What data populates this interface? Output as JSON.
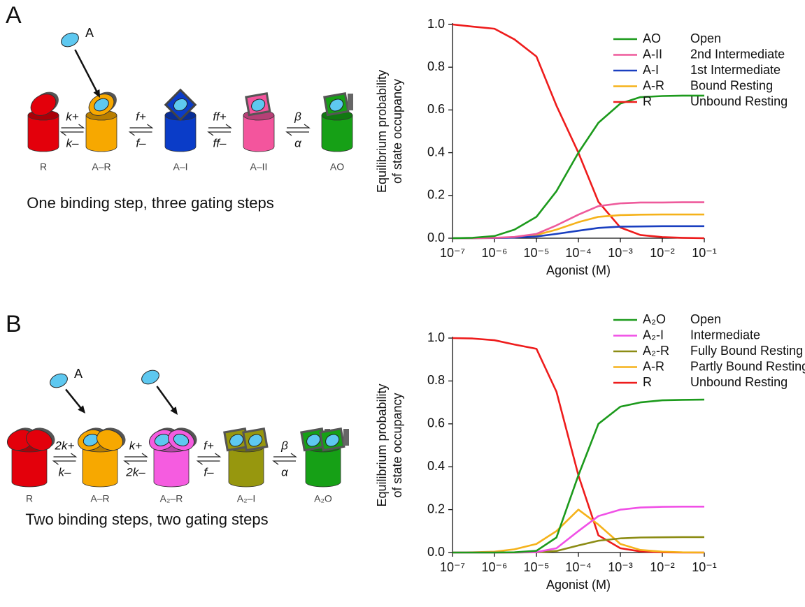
{
  "panels": [
    {
      "label": "A",
      "diagram": {
        "ligand": "A",
        "states": [
          "R",
          "A–R",
          "A–I",
          "A–II",
          "AO"
        ],
        "rates": [
          {
            "forward": "k+",
            "backward": "k–"
          },
          {
            "forward": "f+",
            "backward": "f–"
          },
          {
            "forward": "ff+",
            "backward": "ff–"
          },
          {
            "forward": "β",
            "backward": "α"
          }
        ],
        "caption": "One binding step, three gating steps"
      }
    },
    {
      "label": "B",
      "diagram": {
        "ligand": "A",
        "states": [
          "R",
          "A–R",
          "A₂–R",
          "A₂–I",
          "A₂O"
        ],
        "rates": [
          {
            "forward": "2k+",
            "backward": "k–"
          },
          {
            "forward": "k+",
            "backward": "2k–"
          },
          {
            "forward": "f+",
            "backward": "f–"
          },
          {
            "forward": "β",
            "backward": "α"
          }
        ],
        "caption": "Two binding steps, two gating steps"
      }
    }
  ],
  "chart_data": [
    {
      "type": "line",
      "xscale": "log",
      "xlabel": "Agonist (M)",
      "ylabel": [
        "Equilibrium probability",
        "of state occupancy"
      ],
      "xlim": [
        1e-07,
        0.1
      ],
      "xticks": [
        {
          "value": 1e-07,
          "label": "10⁻⁷"
        },
        {
          "value": 1e-06,
          "label": "10⁻⁶"
        },
        {
          "value": 1e-05,
          "label": "10⁻⁵"
        },
        {
          "value": 0.0001,
          "label": "10⁻⁴"
        },
        {
          "value": 0.001,
          "label": "10⁻³"
        },
        {
          "value": 0.01,
          "label": "10⁻²"
        },
        {
          "value": 0.1,
          "label": "10⁻¹"
        }
      ],
      "ylim": [
        0,
        1
      ],
      "yticks": [
        {
          "value": 0,
          "label": "0.0"
        },
        0.2,
        0.4,
        0.6,
        0.8,
        {
          "value": 1,
          "label": "1.0"
        }
      ],
      "legend": "upper right",
      "x": [
        1e-07,
        3e-07,
        1e-06,
        3e-06,
        1e-05,
        3e-05,
        0.0001,
        0.0003,
        0.001,
        0.003,
        0.01,
        0.03,
        0.1
      ],
      "series": [
        {
          "name": "AO",
          "description": "Open",
          "color": "#1c9a1c",
          "values": [
            0,
            0.002,
            0.01,
            0.04,
            0.1,
            0.22,
            0.4,
            0.54,
            0.63,
            0.66,
            0.665,
            0.667,
            0.667
          ]
        },
        {
          "name": "A-II",
          "description": "2nd Intermediate",
          "color": "#ee5a9b",
          "values": [
            0,
            0,
            0.002,
            0.006,
            0.02,
            0.06,
            0.11,
            0.15,
            0.163,
            0.167,
            0.167,
            0.168,
            0.168
          ]
        },
        {
          "name": "A-I",
          "description": "1st Intermediate",
          "color": "#1a3fc0",
          "values": [
            0,
            0,
            0.001,
            0.003,
            0.008,
            0.02,
            0.035,
            0.048,
            0.054,
            0.055,
            0.056,
            0.056,
            0.056
          ]
        },
        {
          "name": "A-R",
          "description": "Bound Resting",
          "color": "#f5b21a",
          "values": [
            0,
            0,
            0.001,
            0.004,
            0.015,
            0.04,
            0.075,
            0.1,
            0.108,
            0.11,
            0.111,
            0.111,
            0.111
          ]
        },
        {
          "name": "R",
          "description": "Unbound Resting",
          "color": "#ee1c1c",
          "values": [
            1,
            0.99,
            0.98,
            0.93,
            0.85,
            0.62,
            0.4,
            0.17,
            0.05,
            0.015,
            0.005,
            0.002,
            0
          ]
        }
      ]
    },
    {
      "type": "line",
      "xscale": "log",
      "xlabel": "Agonist (M)",
      "ylabel": [
        "Equilibrium probability",
        "of state occupancy"
      ],
      "xlim": [
        1e-07,
        0.1
      ],
      "xticks": [
        {
          "value": 1e-07,
          "label": "10⁻⁷"
        },
        {
          "value": 1e-06,
          "label": "10⁻⁶"
        },
        {
          "value": 1e-05,
          "label": "10⁻⁵"
        },
        {
          "value": 0.0001,
          "label": "10⁻⁴"
        },
        {
          "value": 0.001,
          "label": "10⁻³"
        },
        {
          "value": 0.01,
          "label": "10⁻²"
        },
        {
          "value": 0.1,
          "label": "10⁻¹"
        }
      ],
      "ylim": [
        0,
        1
      ],
      "yticks": [
        {
          "value": 0,
          "label": "0.0"
        },
        0.2,
        0.4,
        0.6,
        0.8,
        {
          "value": 1,
          "label": "1.0"
        }
      ],
      "legend": "upper right",
      "x": [
        1e-07,
        3e-07,
        1e-06,
        3e-06,
        1e-05,
        3e-05,
        0.0001,
        0.0003,
        0.001,
        0.003,
        0.01,
        0.03,
        0.1
      ],
      "series": [
        {
          "name": "A₂O",
          "description": "Open",
          "color": "#1c9a1c",
          "values": [
            0,
            0,
            0,
            0.001,
            0.008,
            0.07,
            0.36,
            0.6,
            0.68,
            0.7,
            0.71,
            0.712,
            0.713
          ]
        },
        {
          "name": "A₂-I",
          "description": "Intermediate",
          "color": "#f050e6",
          "values": [
            0,
            0,
            0,
            0,
            0.002,
            0.02,
            0.1,
            0.17,
            0.2,
            0.21,
            0.213,
            0.214,
            0.214
          ]
        },
        {
          "name": "A₂-R",
          "description": "Fully Bound Resting",
          "color": "#8c8c14",
          "values": [
            0,
            0,
            0,
            0,
            0.001,
            0.007,
            0.033,
            0.055,
            0.066,
            0.07,
            0.071,
            0.072,
            0.072
          ]
        },
        {
          "name": "A-R",
          "description": "Partly Bound Resting",
          "color": "#f5b21a",
          "values": [
            0,
            0.001,
            0.004,
            0.015,
            0.04,
            0.1,
            0.2,
            0.13,
            0.04,
            0.012,
            0.004,
            0.001,
            0
          ]
        },
        {
          "name": "R",
          "description": "Unbound Resting",
          "color": "#ee1c1c",
          "values": [
            1,
            0.998,
            0.99,
            0.97,
            0.95,
            0.75,
            0.36,
            0.08,
            0.02,
            0.005,
            0.001,
            0,
            0
          ]
        }
      ]
    }
  ]
}
